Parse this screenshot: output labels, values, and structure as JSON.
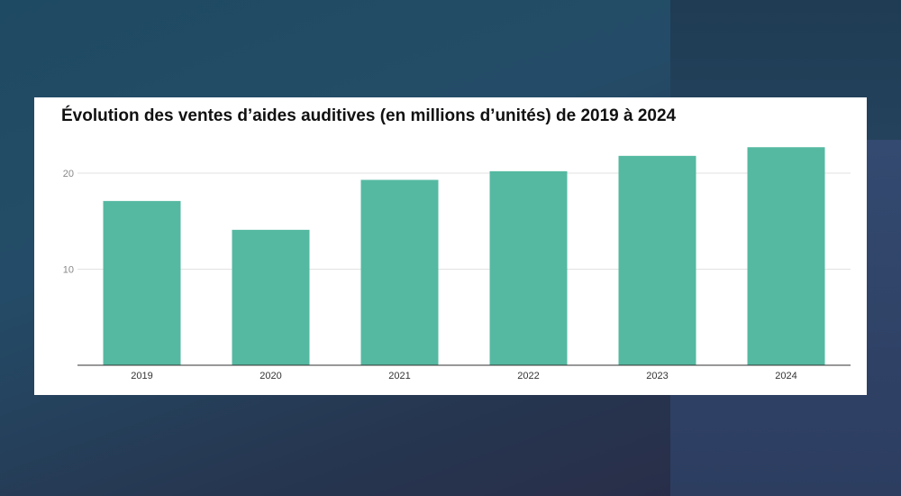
{
  "chart_data": {
    "type": "bar",
    "title": "Évolution des ventes d’aides auditives (en millions d’unités) de 2019 à 2024",
    "categories": [
      "2019",
      "2020",
      "2021",
      "2022",
      "2023",
      "2024"
    ],
    "values": [
      17.1,
      14.1,
      19.3,
      20.2,
      21.8,
      22.7
    ],
    "xlabel": "",
    "ylabel": "",
    "ylim": [
      0,
      24
    ],
    "yticks": [
      10,
      20
    ],
    "yticklabels": [
      "10",
      "20"
    ],
    "grid": true,
    "legend": "none",
    "bar_color": "#55b9a1"
  }
}
